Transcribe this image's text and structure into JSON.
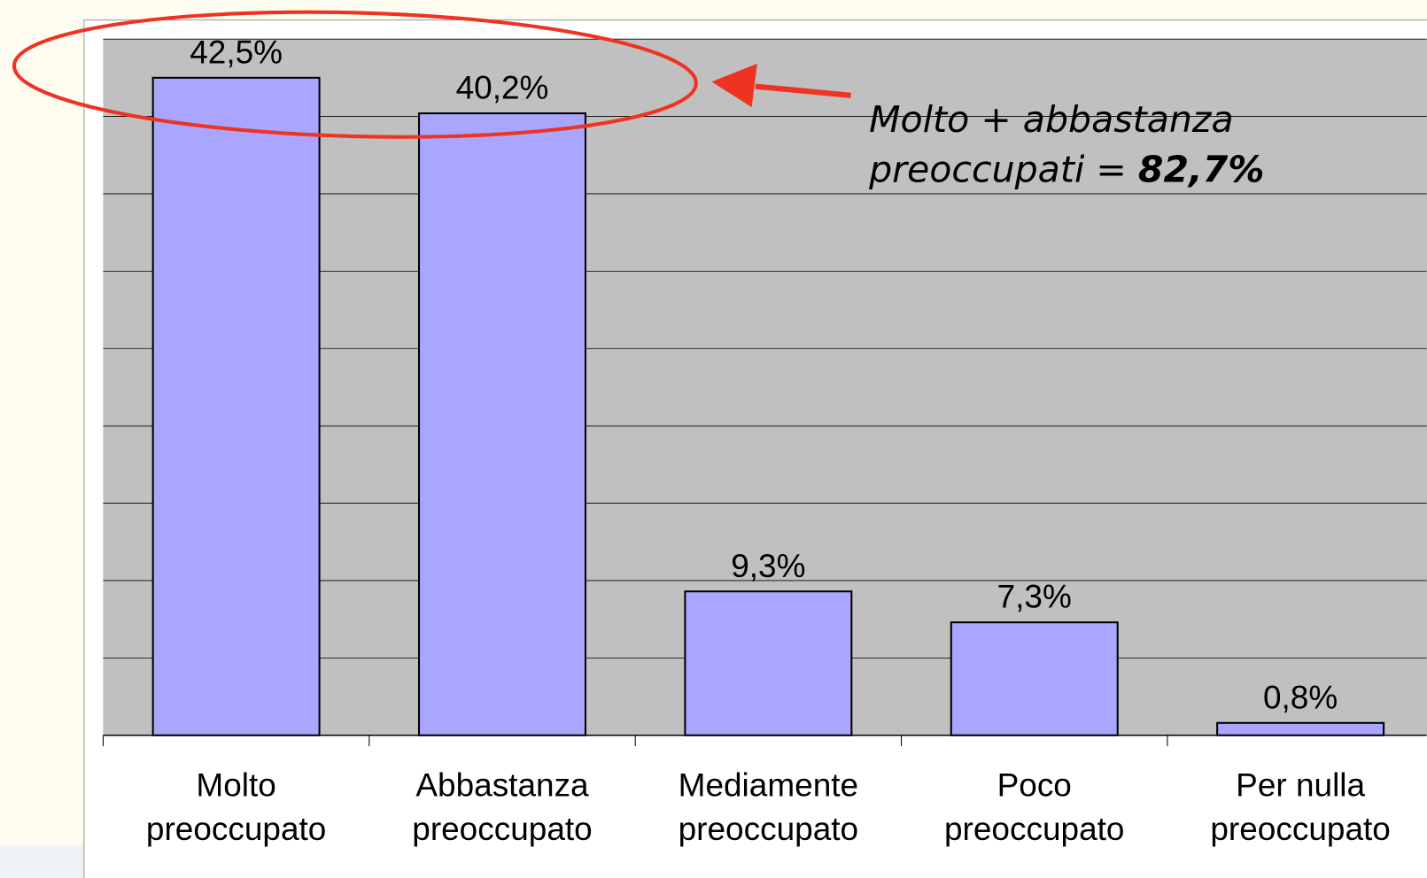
{
  "chart_data": {
    "type": "bar",
    "categories": [
      "Molto preoccupato",
      "Abbastanza preoccupato",
      "Mediamente preoccupato",
      "Poco preoccupato",
      "Per nulla preoccupato"
    ],
    "values": [
      42.5,
      40.2,
      9.3,
      7.3,
      0.8
    ],
    "value_labels": [
      "42,5%",
      "40,2%",
      "9,3%",
      "7,3%",
      "0,8%"
    ],
    "color": "#aaa6ff",
    "ylim": [
      0,
      45
    ],
    "yticks": [
      0,
      5,
      10,
      15,
      20,
      25,
      30,
      35,
      40,
      45
    ],
    "grid": true,
    "annotation": {
      "line1": "Molto + abbastanza",
      "line2": "preoccupati =",
      "highlight": "82,7%"
    }
  }
}
